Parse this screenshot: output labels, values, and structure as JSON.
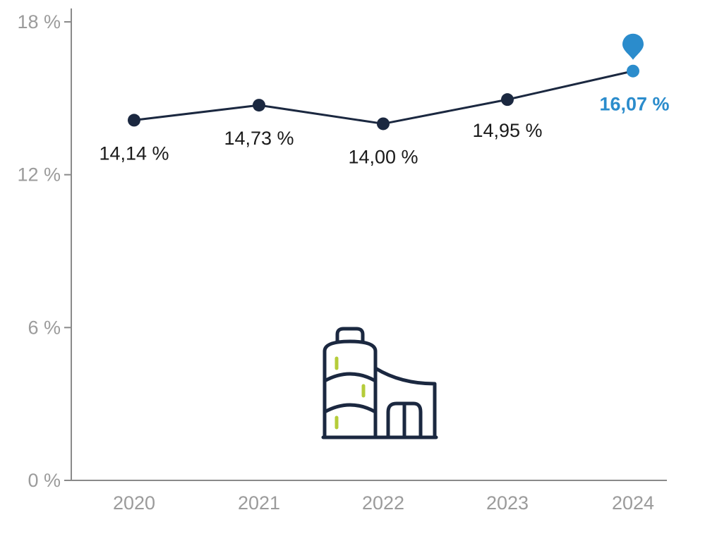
{
  "chart_data": {
    "type": "line",
    "categories": [
      "2020",
      "2021",
      "2022",
      "2023",
      "2024"
    ],
    "values": [
      14.14,
      14.73,
      14.0,
      14.95,
      16.07
    ],
    "data_labels": [
      "14,14 %",
      "14,73 %",
      "14,00 %",
      "14,95 %",
      "16,07 %"
    ],
    "highlight_index": 4,
    "y_ticks": [
      {
        "value": 0,
        "label": "0 %"
      },
      {
        "value": 6,
        "label": "6 %"
      },
      {
        "value": 12,
        "label": "12 %"
      },
      {
        "value": 18,
        "label": "18 %"
      }
    ],
    "ylim": [
      0,
      18
    ],
    "grid": false,
    "colors": {
      "line": "#1b2840",
      "highlight": "#2b8ccc",
      "axis": "#8a8a8a",
      "tick_text": "#9b9b9b",
      "icon_stroke": "#1b2840",
      "icon_accent": "#b5cc3a"
    },
    "markers": {
      "highlight_icon": "map-pin-icon",
      "center_icon": "factory-silo-icon"
    }
  }
}
